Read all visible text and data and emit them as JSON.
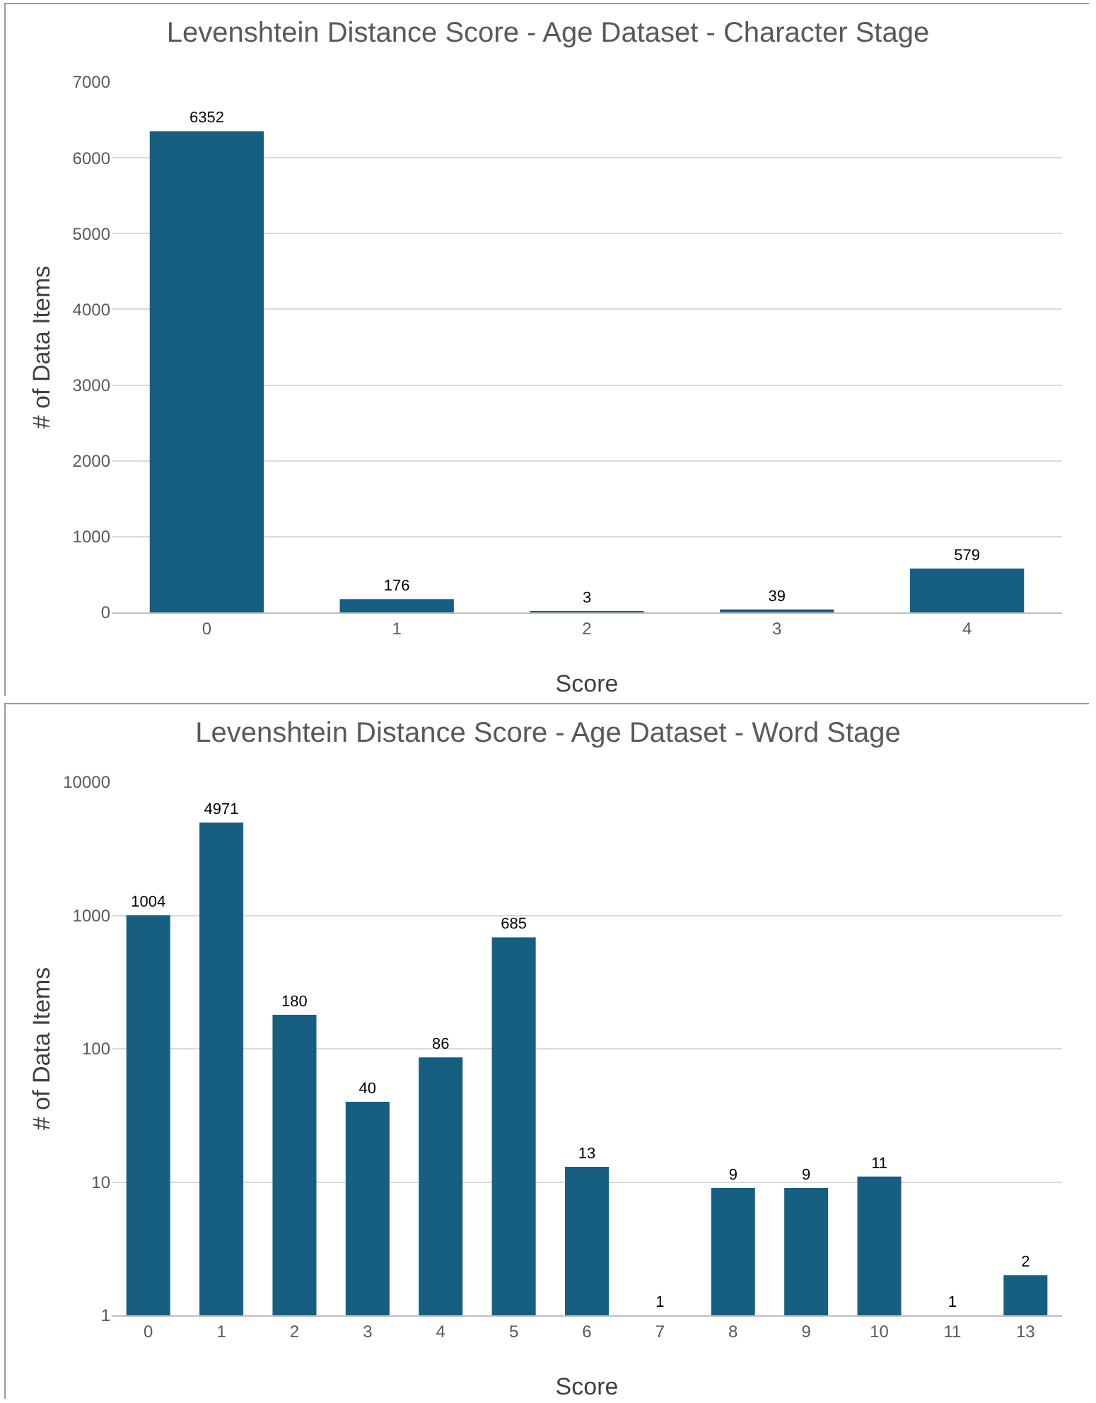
{
  "chart_data": [
    {
      "type": "bar",
      "title": "Levenshtein Distance Score - Age Dataset - Character Stage",
      "xlabel": "Score",
      "ylabel": "# of Data Items",
      "categories": [
        "0",
        "1",
        "2",
        "3",
        "4"
      ],
      "values": [
        6352,
        176,
        3,
        39,
        579
      ],
      "color": "#175f80",
      "ylim": [
        0,
        7000
      ],
      "yticks": [
        0,
        1000,
        2000,
        3000,
        4000,
        5000,
        6000,
        7000
      ],
      "grid": "y",
      "data_labels": true
    },
    {
      "type": "bar",
      "title": "Levenshtein Distance Score - Age Dataset - Word Stage",
      "xlabel": "Score",
      "ylabel": "# of Data Items",
      "categories": [
        "0",
        "1",
        "2",
        "3",
        "4",
        "5",
        "6",
        "7",
        "8",
        "9",
        "10",
        "11",
        "13"
      ],
      "values": [
        1004,
        4971,
        180,
        40,
        86,
        685,
        13,
        1,
        9,
        9,
        11,
        1,
        2
      ],
      "color": "#175f80",
      "log": true,
      "ylim": [
        1,
        10000
      ],
      "yticks": [
        1,
        10,
        100,
        1000,
        10000
      ],
      "grid": "y",
      "data_labels": true
    }
  ]
}
